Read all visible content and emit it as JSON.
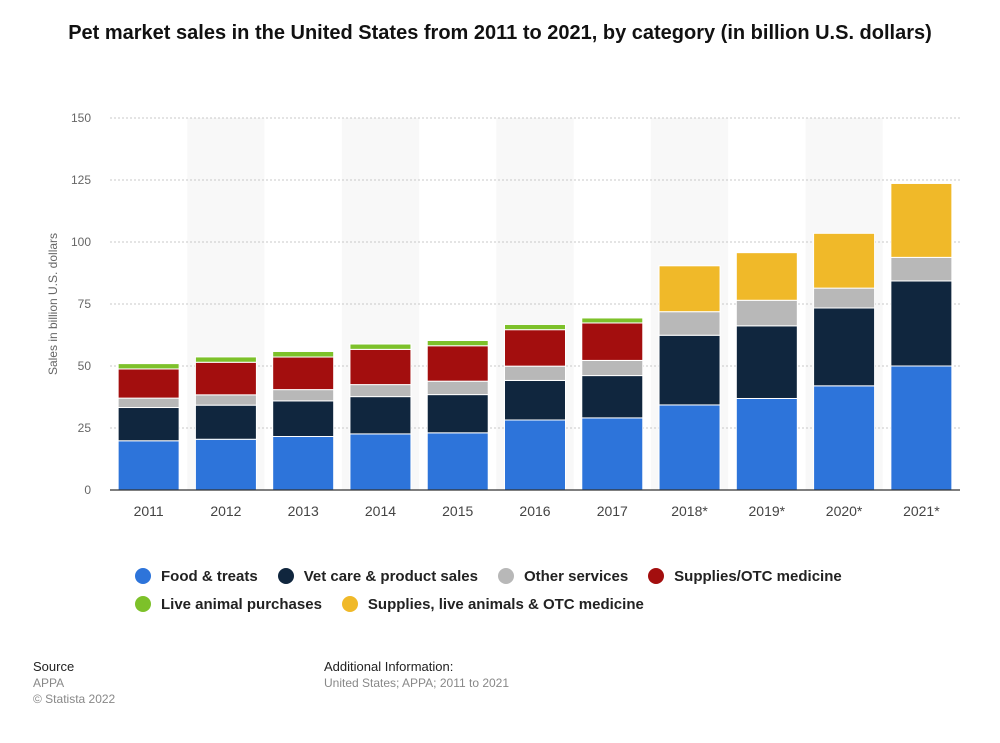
{
  "chart_data": {
    "type": "bar",
    "stacked": true,
    "title": "Pet market sales in the United States from 2011 to 2021, by category (in billion U.S. dollars)",
    "ylabel": "Sales in billion U.S. dollars",
    "xlabel": "",
    "ylim": [
      0,
      150
    ],
    "yticks": [
      0,
      25,
      50,
      75,
      100,
      125,
      150
    ],
    "grid": true,
    "legend_position": "bottom",
    "categories": [
      "2011",
      "2012",
      "2013",
      "2014",
      "2015",
      "2016",
      "2017",
      "2018*",
      "2019*",
      "2020*",
      "2021*"
    ],
    "series": [
      {
        "name": "Food & treats",
        "color": "#2d74da",
        "values": [
          19.85,
          20.46,
          21.57,
          22.62,
          23.05,
          28.23,
          29.07,
          34.3,
          36.9,
          42.0,
          50.0
        ]
      },
      {
        "name": "Vet care & product sales",
        "color": "#10263e",
        "values": [
          13.41,
          13.75,
          14.37,
          15.04,
          15.42,
          15.95,
          17.07,
          28.1,
          29.3,
          31.4,
          34.3
        ]
      },
      {
        "name": "Other services",
        "color": "#b8b8b8",
        "values": [
          3.79,
          4.16,
          4.54,
          4.84,
          5.41,
          5.76,
          6.11,
          9.5,
          10.3,
          8.0,
          9.5
        ]
      },
      {
        "name": "Supplies/OTC medicine",
        "color": "#a30e0e",
        "values": [
          11.77,
          13.14,
          13.14,
          14.21,
          14.28,
          14.71,
          15.11,
          0,
          0,
          0,
          0
        ]
      },
      {
        "name": "Live animal purchases",
        "color": "#7dc12a",
        "values": [
          2.14,
          2.15,
          2.23,
          2.15,
          2.12,
          2.1,
          2.01,
          0,
          0,
          0,
          0
        ]
      },
      {
        "name": "Supplies, live animals & OTC medicine",
        "color": "#f0b929",
        "values": [
          0,
          0,
          0,
          0,
          0,
          0,
          0,
          18.5,
          19.2,
          22.1,
          29.8
        ]
      }
    ]
  },
  "footer": {
    "source_heading": "Source",
    "source_name": "APPA",
    "copyright": "© Statista 2022",
    "info_heading": "Additional Information:",
    "info_text": "United States; APPA; 2011 to 2021"
  }
}
